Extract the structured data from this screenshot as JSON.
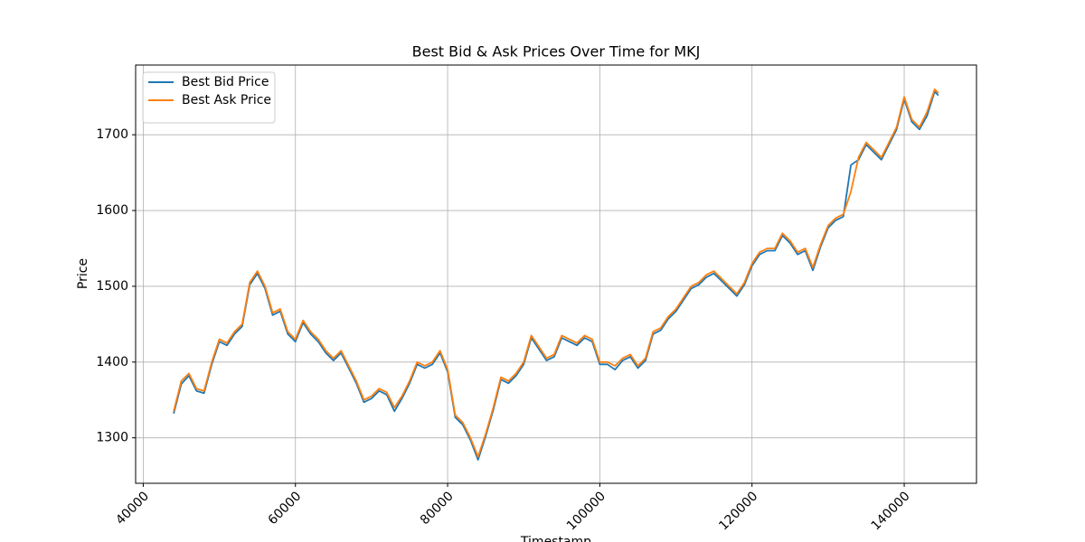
{
  "chart_data": {
    "type": "line",
    "title": "Best Bid & Ask Prices Over Time for MKJ",
    "x_label": "Timestamp",
    "y_label": "Price",
    "x": [
      44000,
      45000,
      46000,
      47000,
      48000,
      49000,
      50000,
      51000,
      52000,
      53000,
      54000,
      55000,
      56000,
      57000,
      58000,
      59000,
      60000,
      61000,
      62000,
      63000,
      64000,
      65000,
      66000,
      67000,
      68000,
      69000,
      70000,
      71000,
      72000,
      73000,
      74000,
      75000,
      76000,
      77000,
      78000,
      79000,
      80000,
      81000,
      82000,
      83000,
      84000,
      85000,
      86000,
      87000,
      88000,
      89000,
      90000,
      91000,
      92000,
      93000,
      94000,
      95000,
      96000,
      97000,
      98000,
      99000,
      100000,
      101000,
      102000,
      103000,
      104000,
      105000,
      106000,
      107000,
      108000,
      109000,
      110000,
      111000,
      112000,
      113000,
      114000,
      115000,
      116000,
      117000,
      118000,
      119000,
      120000,
      121000,
      122000,
      123000,
      124000,
      125000,
      126000,
      127000,
      128000,
      129000,
      130000,
      131000,
      132000,
      133000,
      134000,
      135000,
      136000,
      137000,
      138000,
      139000,
      140000,
      141000,
      142000,
      143000,
      144000,
      144500
    ],
    "series": [
      {
        "name": "Best Bid Price",
        "color": "#1f77b4",
        "values": [
          1332,
          1371,
          1382,
          1362,
          1359,
          1397,
          1427,
          1422,
          1437,
          1447,
          1502,
          1517,
          1497,
          1462,
          1467,
          1437,
          1427,
          1452,
          1437,
          1427,
          1412,
          1402,
          1412,
          1392,
          1372,
          1347,
          1352,
          1362,
          1357,
          1335,
          1352,
          1372,
          1397,
          1392,
          1397,
          1412,
          1387,
          1327,
          1317,
          1297,
          1271,
          1302,
          1337,
          1377,
          1372,
          1382,
          1397,
          1432,
          1417,
          1402,
          1407,
          1432,
          1427,
          1422,
          1432,
          1427,
          1397,
          1397,
          1390,
          1402,
          1407,
          1392,
          1402,
          1437,
          1442,
          1457,
          1467,
          1482,
          1497,
          1502,
          1512,
          1517,
          1507,
          1497,
          1487,
          1502,
          1527,
          1542,
          1547,
          1547,
          1567,
          1557,
          1542,
          1547,
          1521,
          1552,
          1577,
          1587,
          1592,
          1660,
          1667,
          1687,
          1677,
          1667,
          1687,
          1707,
          1747,
          1717,
          1707,
          1725,
          1757,
          1752
        ]
      },
      {
        "name": "Best Ask Price",
        "color": "#ff7f0e",
        "values": [
          1335,
          1375,
          1385,
          1365,
          1362,
          1400,
          1430,
          1425,
          1440,
          1450,
          1505,
          1520,
          1500,
          1465,
          1470,
          1440,
          1430,
          1455,
          1440,
          1430,
          1415,
          1405,
          1415,
          1395,
          1375,
          1350,
          1355,
          1365,
          1360,
          1340,
          1355,
          1375,
          1400,
          1395,
          1400,
          1415,
          1390,
          1330,
          1320,
          1300,
          1275,
          1305,
          1340,
          1380,
          1375,
          1385,
          1400,
          1435,
          1420,
          1405,
          1410,
          1435,
          1430,
          1425,
          1435,
          1430,
          1400,
          1400,
          1395,
          1405,
          1410,
          1395,
          1405,
          1440,
          1445,
          1460,
          1470,
          1485,
          1500,
          1505,
          1515,
          1520,
          1510,
          1500,
          1490,
          1505,
          1530,
          1545,
          1550,
          1550,
          1570,
          1560,
          1545,
          1550,
          1525,
          1555,
          1580,
          1590,
          1595,
          1625,
          1670,
          1690,
          1680,
          1670,
          1690,
          1710,
          1750,
          1720,
          1710,
          1730,
          1760,
          1755
        ]
      }
    ],
    "xlim": [
      39000,
      149500
    ],
    "ylim": [
      1240,
      1792
    ],
    "xticks": [
      40000,
      60000,
      80000,
      100000,
      120000,
      140000
    ],
    "yticks": [
      1300,
      1400,
      1500,
      1600,
      1700
    ],
    "grid": true,
    "legend": "upper left"
  }
}
